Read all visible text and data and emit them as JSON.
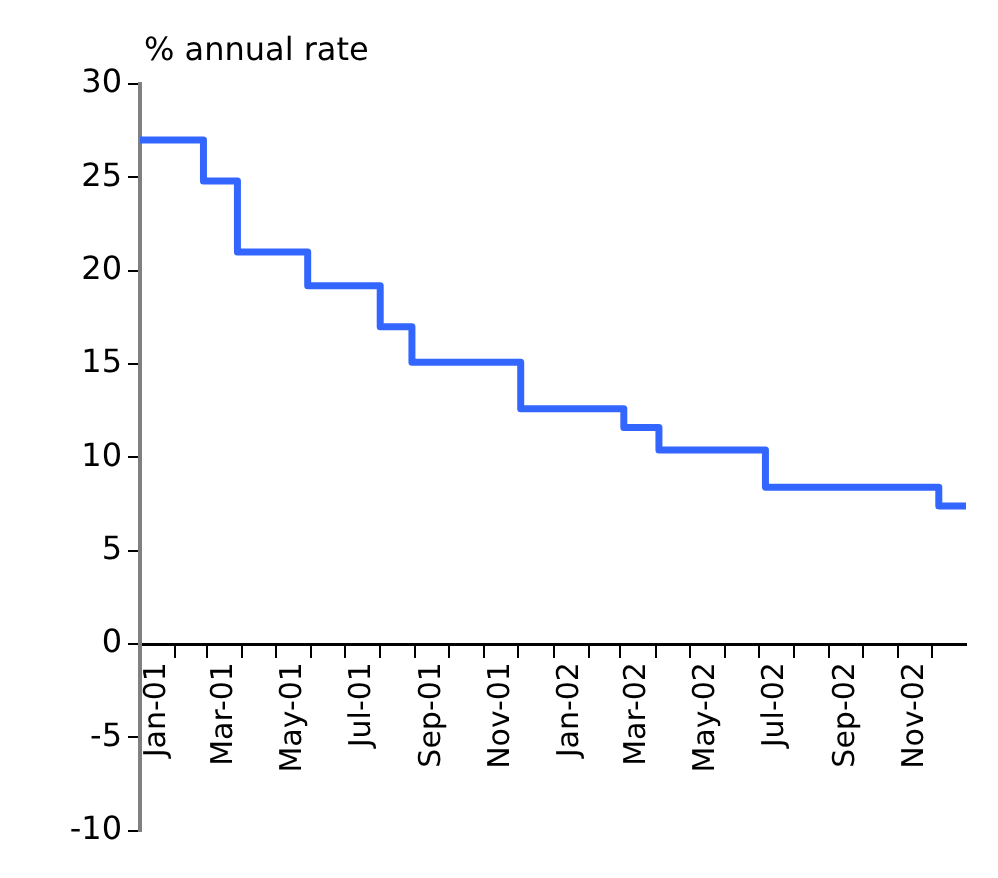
{
  "chart_data": {
    "type": "step",
    "ylabel": "% annual rate",
    "x": [
      "2001-01-01",
      "2001-02-26",
      "2001-03-28",
      "2001-05-29",
      "2001-08-01",
      "2001-08-29",
      "2001-12-03",
      "2002-03-04",
      "2002-04-04",
      "2002-07-07",
      "2002-12-07",
      "2002-12-31"
    ],
    "series": [
      {
        "color": "#3366ff",
        "values": [
          27,
          24.8,
          21,
          19.2,
          17,
          15.1,
          12.6,
          11.6,
          10.4,
          8.4,
          7.4,
          7.4
        ]
      }
    ],
    "xlim": [
      "2001-01-01",
      "2002-12-31"
    ],
    "xticks": [
      {
        "value": "2001-01",
        "label": null
      },
      {
        "value": "2001-01-16",
        "label": "Jan-01"
      },
      {
        "value": "2001-02",
        "label": null
      },
      {
        "value": "2001-03",
        "label": null
      },
      {
        "value": "2001-03-16",
        "label": "Mar-01"
      },
      {
        "value": "2001-04",
        "label": null
      },
      {
        "value": "2001-05",
        "label": null
      },
      {
        "value": "2001-05-16",
        "label": "May-01"
      },
      {
        "value": "2001-06",
        "label": null
      },
      {
        "value": "2001-07",
        "label": null
      },
      {
        "value": "2001-07-16",
        "label": "Jul-01"
      },
      {
        "value": "2001-08",
        "label": null
      },
      {
        "value": "2001-09",
        "label": null
      },
      {
        "value": "2001-09-16",
        "label": "Sep-01"
      },
      {
        "value": "2001-10",
        "label": null
      },
      {
        "value": "2001-11",
        "label": null
      },
      {
        "value": "2001-11-16",
        "label": "Nov-01"
      },
      {
        "value": "2001-12",
        "label": null
      },
      {
        "value": "2002-01",
        "label": null
      },
      {
        "value": "2002-01-16",
        "label": "Jan-02"
      },
      {
        "value": "2002-02",
        "label": null
      },
      {
        "value": "2002-03",
        "label": null
      },
      {
        "value": "2002-03-16",
        "label": "Mar-02"
      },
      {
        "value": "2002-04",
        "label": null
      },
      {
        "value": "2002-05",
        "label": null
      },
      {
        "value": "2002-05-16",
        "label": "May-02"
      },
      {
        "value": "2002-06",
        "label": null
      },
      {
        "value": "2002-07",
        "label": null
      },
      {
        "value": "2002-07-16",
        "label": "Jul-02"
      },
      {
        "value": "2002-08",
        "label": null
      },
      {
        "value": "2002-09",
        "label": null
      },
      {
        "value": "2002-09-16",
        "label": "Sep-02"
      },
      {
        "value": "2002-10",
        "label": null
      },
      {
        "value": "2002-11",
        "label": null
      },
      {
        "value": "2002-11-16",
        "label": "Nov-02"
      },
      {
        "value": "2002-12",
        "label": null
      }
    ],
    "ylim": [
      -10,
      30
    ],
    "yticks": [
      -10,
      -5,
      0,
      5,
      10,
      15,
      20,
      25,
      30
    ],
    "grid": false,
    "legend": false,
    "marker": "none",
    "line_style": "solid"
  }
}
